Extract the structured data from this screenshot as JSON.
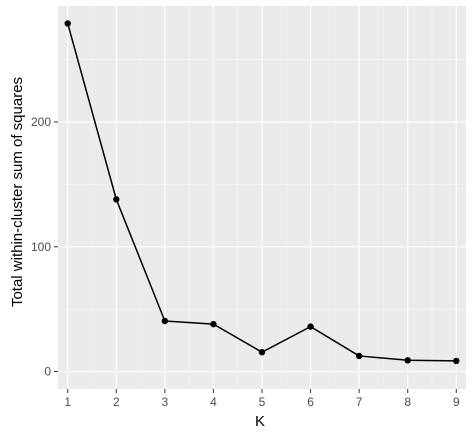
{
  "chart_data": {
    "type": "line",
    "title": "",
    "xlabel": "K",
    "ylabel": "Total within-cluster sum of squares",
    "x": [
      1,
      2,
      3,
      4,
      5,
      6,
      7,
      8,
      9
    ],
    "series": [
      {
        "values": [
          279,
          138,
          40.5,
          38,
          15.5,
          36,
          12.5,
          9,
          8.5
        ]
      }
    ],
    "xlim": [
      0.8,
      9.2
    ],
    "ylim": [
      -14,
      293
    ],
    "xticks": [
      1,
      2,
      3,
      4,
      5,
      6,
      7,
      8,
      9
    ],
    "xtick_labels": [
      "1",
      "2",
      "3",
      "4",
      "5",
      "6",
      "7",
      "8",
      "9"
    ],
    "yticks": [
      0,
      100,
      200
    ],
    "ytick_labels": [
      "0",
      "100",
      "200"
    ],
    "grid": true,
    "legend": "none",
    "colors": {
      "panel_background": "#ebebeb",
      "grid_major": "#ffffff",
      "grid_minor": "#f5f5f5",
      "line": "#000000",
      "point": "#000000",
      "tick_mark": "#333333"
    }
  }
}
